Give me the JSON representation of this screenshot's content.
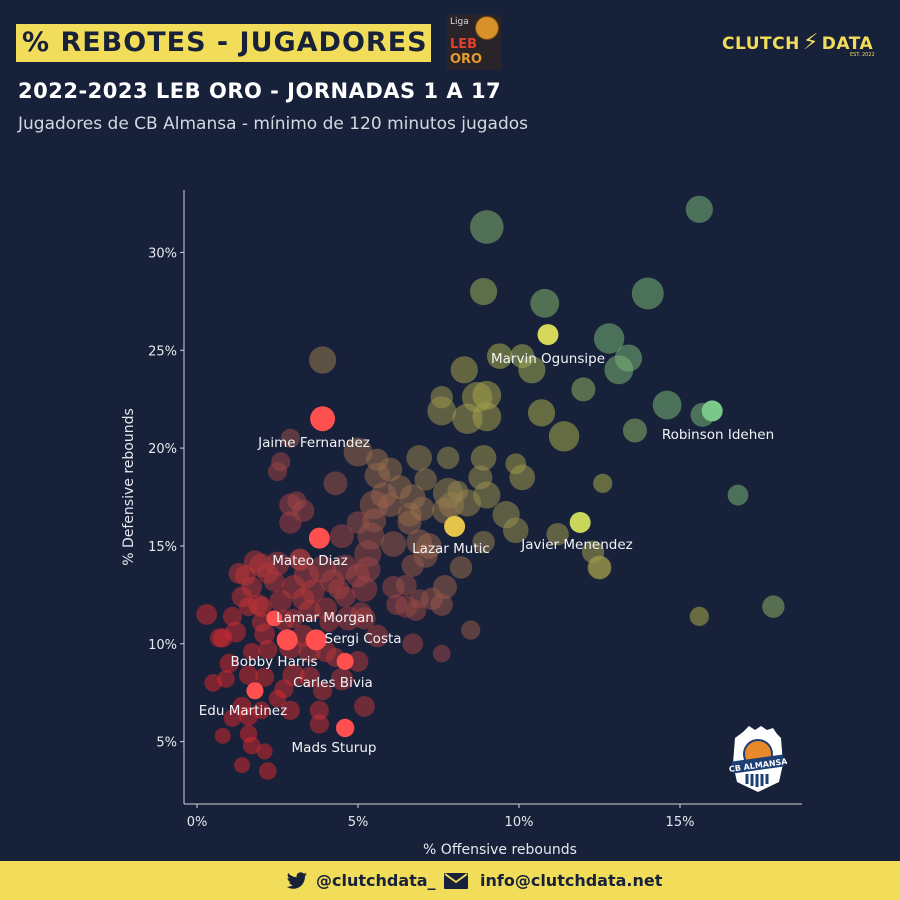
{
  "header": {
    "title": "% REBOTES - JUGADORES",
    "subtitle": "2022-2023 LEB ORO - JORNADAS 1 A 17",
    "description": "Jugadores de CB Almansa - mínimo de 120 minutos jugados",
    "brand": "CLUTCH",
    "brand_suffix": "DATA",
    "brand_est": "EST. 2022"
  },
  "league_logo": {
    "liga": "Liga",
    "leb": "LEB",
    "oro": "ORO"
  },
  "club_logo": {
    "text": "CB ALMANSA"
  },
  "footer": {
    "twitter": "@clutchdata_",
    "email": "info@clutchdata.net"
  },
  "colors": {
    "background": "#172139",
    "accent": "#f2dd5a",
    "highlight_low": "#ff4f4f",
    "highlight_high": "#7ac98a"
  },
  "chart_data": {
    "type": "scatter",
    "xlabel": "% Offensive rebounds",
    "ylabel": "% Defensive rebounds",
    "xlim": [
      0,
      18.5
    ],
    "ylim": [
      2.2,
      33
    ],
    "xticks": [
      0,
      5,
      10,
      15
    ],
    "xtick_labels": [
      "0%",
      "5%",
      "10%",
      "15%"
    ],
    "yticks": [
      5,
      10,
      15,
      20,
      25,
      30
    ],
    "ytick_labels": [
      "5%",
      "10%",
      "15%",
      "20%",
      "25%",
      "30%"
    ],
    "grid": false,
    "highlighted": [
      {
        "name": "Marvin Ogunsipe",
        "x": 10.9,
        "y": 25.8,
        "size": 1.0
      },
      {
        "name": "Robinson Idehen",
        "x": 16.0,
        "y": 21.9,
        "size": 1.0
      },
      {
        "name": "Jaime Fernandez",
        "x": 3.9,
        "y": 21.5,
        "size": 1.3
      },
      {
        "name": "Lazar Mutic",
        "x": 8.0,
        "y": 16.0,
        "size": 1.0
      },
      {
        "name": "Javier Menendez",
        "x": 11.9,
        "y": 16.2,
        "size": 1.0
      },
      {
        "name": "Mateo Diaz",
        "x": 3.8,
        "y": 15.4,
        "size": 1.0
      },
      {
        "name": "Lamar Morgan",
        "x": 2.4,
        "y": 11.3,
        "size": 0.6
      },
      {
        "name": "Sergi Costa",
        "x": 3.7,
        "y": 10.2,
        "size": 1.0
      },
      {
        "name": "Bobby Harris",
        "x": 2.8,
        "y": 10.2,
        "size": 1.0
      },
      {
        "name": "Carles Bivia",
        "x": 4.6,
        "y": 9.1,
        "size": 0.7
      },
      {
        "name": "Edu Martinez",
        "x": 1.8,
        "y": 7.6,
        "size": 0.7
      },
      {
        "name": "Mads Sturup",
        "x": 4.6,
        "y": 5.7,
        "size": 0.8
      }
    ],
    "others": [
      [
        15.6,
        32.2,
        1.2
      ],
      [
        9.0,
        31.3,
        1.6
      ],
      [
        8.9,
        28.0,
        1.2
      ],
      [
        10.8,
        27.4,
        1.3
      ],
      [
        14.0,
        27.9,
        1.5
      ],
      [
        12.8,
        25.6,
        1.4
      ],
      [
        13.4,
        24.6,
        1.2
      ],
      [
        13.1,
        24.0,
        1.3
      ],
      [
        9.4,
        24.7,
        1.1
      ],
      [
        10.1,
        24.7,
        1.0
      ],
      [
        8.3,
        24.0,
        1.2
      ],
      [
        10.4,
        24.0,
        1.2
      ],
      [
        3.9,
        24.5,
        1.2
      ],
      [
        12.0,
        23.0,
        1.0
      ],
      [
        8.7,
        22.6,
        1.4
      ],
      [
        9.0,
        22.7,
        1.3
      ],
      [
        7.6,
        22.6,
        0.9
      ],
      [
        7.6,
        21.9,
        1.3
      ],
      [
        8.4,
        21.5,
        1.4
      ],
      [
        9.0,
        21.6,
        1.3
      ],
      [
        10.7,
        21.8,
        1.2
      ],
      [
        11.4,
        20.6,
        1.4
      ],
      [
        14.6,
        22.2,
        1.3
      ],
      [
        15.7,
        21.7,
        1.0
      ],
      [
        13.6,
        20.9,
        1.0
      ],
      [
        2.9,
        20.5,
        0.7
      ],
      [
        5.0,
        19.8,
        1.3
      ],
      [
        6.9,
        19.5,
        1.1
      ],
      [
        7.8,
        19.5,
        0.9
      ],
      [
        8.9,
        19.5,
        1.1
      ],
      [
        9.9,
        19.2,
        0.8
      ],
      [
        10.1,
        18.5,
        1.1
      ],
      [
        8.8,
        18.5,
        1.0
      ],
      [
        5.6,
        19.4,
        0.9
      ],
      [
        2.6,
        19.3,
        0.7
      ],
      [
        2.5,
        18.8,
        0.7
      ],
      [
        6.0,
        18.9,
        1.0
      ],
      [
        5.6,
        18.6,
        1.1
      ],
      [
        4.3,
        18.2,
        1.0
      ],
      [
        6.3,
        18.0,
        1.0
      ],
      [
        7.1,
        18.4,
        0.9
      ],
      [
        7.8,
        17.7,
        1.4
      ],
      [
        8.1,
        17.8,
        0.8
      ],
      [
        8.4,
        17.2,
        1.2
      ],
      [
        9.0,
        17.6,
        1.2
      ],
      [
        7.9,
        17.1,
        1.1
      ],
      [
        6.7,
        17.5,
        1.1
      ],
      [
        5.8,
        17.6,
        1.1
      ],
      [
        5.5,
        17.1,
        1.3
      ],
      [
        6.0,
        17.1,
        1.0
      ],
      [
        3.1,
        17.3,
        0.7
      ],
      [
        2.9,
        17.1,
        0.9
      ],
      [
        3.3,
        16.8,
        0.9
      ],
      [
        2.9,
        16.2,
        0.9
      ],
      [
        6.6,
        16.6,
        1.0
      ],
      [
        7.7,
        16.8,
        1.1
      ],
      [
        9.6,
        16.6,
        1.2
      ],
      [
        6.6,
        16.2,
        1.0
      ],
      [
        5.0,
        16.2,
        0.9
      ],
      [
        5.5,
        16.3,
        1.0
      ],
      [
        9.9,
        15.8,
        1.1
      ],
      [
        11.2,
        15.6,
        0.9
      ],
      [
        12.6,
        18.2,
        0.7
      ],
      [
        16.8,
        17.6,
        0.8
      ],
      [
        4.5,
        15.5,
        1.0
      ],
      [
        5.4,
        15.5,
        1.2
      ],
      [
        6.1,
        15.1,
        1.1
      ],
      [
        6.9,
        15.2,
        1.1
      ],
      [
        7.2,
        15.0,
        1.1
      ],
      [
        8.9,
        15.2,
        0.9
      ],
      [
        7.1,
        14.5,
        1.0
      ],
      [
        5.3,
        14.6,
        1.2
      ],
      [
        3.2,
        14.3,
        0.9
      ],
      [
        1.8,
        14.2,
        0.9
      ],
      [
        2.0,
        14.0,
        1.0
      ],
      [
        2.5,
        14.1,
        1.0
      ],
      [
        6.7,
        14.0,
        0.9
      ],
      [
        4.6,
        13.9,
        1.1
      ],
      [
        3.9,
        13.8,
        1.2
      ],
      [
        3.4,
        13.5,
        1.1
      ],
      [
        2.2,
        13.6,
        0.8
      ],
      [
        1.3,
        13.6,
        0.8
      ],
      [
        1.5,
        13.5,
        0.8
      ],
      [
        5.3,
        13.8,
        1.1
      ],
      [
        5.0,
        13.5,
        1.0
      ],
      [
        12.3,
        14.7,
        0.9
      ],
      [
        12.5,
        13.9,
        1.0
      ],
      [
        8.2,
        13.9,
        0.9
      ],
      [
        4.2,
        13.2,
        1.0
      ],
      [
        2.4,
        13.2,
        0.8
      ],
      [
        1.7,
        12.9,
        0.8
      ],
      [
        3.0,
        12.9,
        1.0
      ],
      [
        3.6,
        12.7,
        1.0
      ],
      [
        4.4,
        12.8,
        0.8
      ],
      [
        5.2,
        12.8,
        1.1
      ],
      [
        6.1,
        12.9,
        0.9
      ],
      [
        7.7,
        12.9,
        1.0
      ],
      [
        1.4,
        12.4,
        0.8
      ],
      [
        1.9,
        12.0,
        0.8
      ],
      [
        2.0,
        11.9,
        0.8
      ],
      [
        2.6,
        12.2,
        0.9
      ],
      [
        3.3,
        12.3,
        0.9
      ],
      [
        4.6,
        12.4,
        0.8
      ],
      [
        7.3,
        12.3,
        0.9
      ],
      [
        6.9,
        12.3,
        0.7
      ],
      [
        7.6,
        12.0,
        0.9
      ],
      [
        6.5,
        11.9,
        0.9
      ],
      [
        6.2,
        12.0,
        0.8
      ],
      [
        4.0,
        11.8,
        0.9
      ],
      [
        3.5,
        11.7,
        0.9
      ],
      [
        5.1,
        11.6,
        0.8
      ],
      [
        1.6,
        11.9,
        0.7
      ],
      [
        0.3,
        11.5,
        0.8
      ],
      [
        1.1,
        11.4,
        0.7
      ],
      [
        2.7,
        11.2,
        0.8
      ],
      [
        3.0,
        11.3,
        0.7
      ],
      [
        4.1,
        11.1,
        0.7
      ],
      [
        4.7,
        11.3,
        1.0
      ],
      [
        5.2,
        11.3,
        0.9
      ],
      [
        6.8,
        11.7,
        0.8
      ],
      [
        1.2,
        10.6,
        0.8
      ],
      [
        2.1,
        10.5,
        0.8
      ],
      [
        3.3,
        10.4,
        0.9
      ],
      [
        0.8,
        10.3,
        0.7
      ],
      [
        5.6,
        10.4,
        0.9
      ],
      [
        6.7,
        10.0,
        0.8
      ],
      [
        8.5,
        10.7,
        0.7
      ],
      [
        2.9,
        9.8,
        0.9
      ],
      [
        3.5,
        9.6,
        0.9
      ],
      [
        4.0,
        9.6,
        0.8
      ],
      [
        2.2,
        9.7,
        0.7
      ],
      [
        1.7,
        9.6,
        0.6
      ],
      [
        4.3,
        9.3,
        0.7
      ],
      [
        5.0,
        9.1,
        0.8
      ],
      [
        1.0,
        9.0,
        0.7
      ],
      [
        1.6,
        8.4,
        0.7
      ],
      [
        2.1,
        8.3,
        0.7
      ],
      [
        3.0,
        8.4,
        0.9
      ],
      [
        3.5,
        8.3,
        0.8
      ],
      [
        4.5,
        8.2,
        0.9
      ],
      [
        0.9,
        8.2,
        0.6
      ],
      [
        0.5,
        8.0,
        0.6
      ],
      [
        7.6,
        9.5,
        0.6
      ],
      [
        3.9,
        7.6,
        0.7
      ],
      [
        2.7,
        7.7,
        0.7
      ],
      [
        2.5,
        7.2,
        0.6
      ],
      [
        1.4,
        6.8,
        0.7
      ],
      [
        2.0,
        6.6,
        0.6
      ],
      [
        2.9,
        6.6,
        0.7
      ],
      [
        3.8,
        6.6,
        0.7
      ],
      [
        5.2,
        6.8,
        0.8
      ],
      [
        1.6,
        6.3,
        0.7
      ],
      [
        1.1,
        6.2,
        0.6
      ],
      [
        0.8,
        5.3,
        0.5
      ],
      [
        1.6,
        5.4,
        0.6
      ],
      [
        3.8,
        5.9,
        0.7
      ],
      [
        1.7,
        4.8,
        0.6
      ],
      [
        2.1,
        4.5,
        0.5
      ],
      [
        1.4,
        3.8,
        0.5
      ],
      [
        2.2,
        3.5,
        0.6
      ],
      [
        15.6,
        11.4,
        0.7
      ],
      [
        17.9,
        11.9,
        0.9
      ],
      [
        12.5,
        13.9,
        0.9
      ],
      [
        0.7,
        10.3,
        0.7
      ],
      [
        2.0,
        11.1,
        0.7
      ],
      [
        6.5,
        13.0,
        0.8
      ],
      [
        3.2,
        14.3,
        0.8
      ],
      [
        7.0,
        16.9,
        1.0
      ]
    ]
  }
}
